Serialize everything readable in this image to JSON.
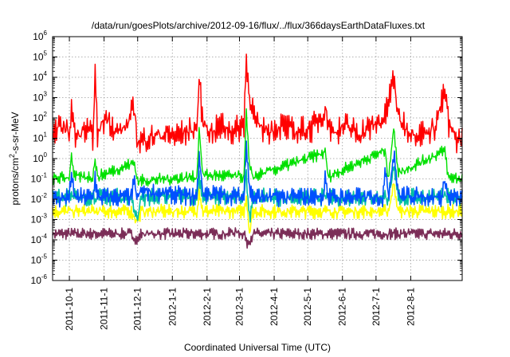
{
  "chart_data": {
    "type": "line",
    "title": "/data/run/goesPlots/archive/2012-09-16/flux/../flux/366daysEarthDataFluxes.txt",
    "xlabel": "Coordinated Universal Time (UTC)",
    "ylabel": "protons/cm2-s-sr-MeV",
    "ylabel_parts": {
      "base": "protons/cm",
      "sup": "2",
      "rest": "-s-sr-MeV"
    },
    "yscale": "log",
    "ylim_exponent": [
      -6,
      6
    ],
    "y_tick_labels": [
      {
        "base": "10",
        "exp": "-6"
      },
      {
        "base": "10",
        "exp": "-5"
      },
      {
        "base": "10",
        "exp": "-4"
      },
      {
        "base": "10",
        "exp": "-3"
      },
      {
        "base": "10",
        "exp": "-2"
      },
      {
        "base": "10",
        "exp": "-1"
      },
      {
        "base": "10",
        "exp": "0"
      },
      {
        "base": "10",
        "exp": "1"
      },
      {
        "base": "10",
        "exp": "2"
      },
      {
        "base": "10",
        "exp": "3"
      },
      {
        "base": "10",
        "exp": "4"
      },
      {
        "base": "10",
        "exp": "5"
      },
      {
        "base": "10",
        "exp": "6"
      }
    ],
    "xlim": [
      "2011-09-16",
      "2012-09-16"
    ],
    "x_ticks": [
      {
        "date": "2011-10-01",
        "label": "2011-10-1"
      },
      {
        "date": "2011-11-01",
        "label": "2011-11-1"
      },
      {
        "date": "2011-12-01",
        "label": "2011-12-1"
      },
      {
        "date": "2012-01-01",
        "label": "2012-1-1"
      },
      {
        "date": "2012-02-01",
        "label": "2012-2-1"
      },
      {
        "date": "2012-03-01",
        "label": "2012-3-1"
      },
      {
        "date": "2012-04-01",
        "label": "2012-4-1"
      },
      {
        "date": "2012-05-01",
        "label": "2012-5-1"
      },
      {
        "date": "2012-06-01",
        "label": "2012-6-1"
      },
      {
        "date": "2012-07-01",
        "label": "2012-7-1"
      },
      {
        "date": "2012-08-01",
        "label": "2012-8-1"
      }
    ],
    "grid": true,
    "series": [
      {
        "color": "#7b2d57",
        "points": [
          [
            "2011-09-16",
            -3.7
          ],
          [
            "2011-11-25",
            -3.7
          ],
          [
            "2011-12-01",
            -4.05
          ],
          [
            "2011-12-04",
            -3.7
          ],
          [
            "2012-02-20",
            -3.7
          ],
          [
            "2012-02-23",
            -3.6
          ],
          [
            "2012-03-06",
            -3.7
          ],
          [
            "2012-03-07",
            -4.2
          ],
          [
            "2012-03-10",
            -4.0
          ],
          [
            "2012-03-14",
            -3.7
          ],
          [
            "2012-09-16",
            -3.7
          ]
        ]
      },
      {
        "color": "#ffff00",
        "points": [
          [
            "2011-09-16",
            -2.6
          ],
          [
            "2011-11-25",
            -2.6
          ],
          [
            "2011-12-01",
            -3.1
          ],
          [
            "2011-12-04",
            -2.6
          ],
          [
            "2012-01-23",
            -2.6
          ],
          [
            "2012-01-25",
            -1.5
          ],
          [
            "2012-01-28",
            -2.6
          ],
          [
            "2012-03-05",
            -2.6
          ],
          [
            "2012-03-07",
            -1.8
          ],
          [
            "2012-03-10",
            -3.6
          ],
          [
            "2012-03-13",
            -2.6
          ],
          [
            "2012-07-12",
            -2.6
          ],
          [
            "2012-07-17",
            -1.2
          ],
          [
            "2012-07-21",
            -2.6
          ],
          [
            "2012-09-16",
            -2.6
          ]
        ]
      },
      {
        "color": "#00c0a0",
        "points": [
          [
            "2011-09-16",
            -1.9
          ],
          [
            "2011-11-25",
            -1.9
          ],
          [
            "2011-12-01",
            -3.0
          ],
          [
            "2011-12-04",
            -1.9
          ],
          [
            "2012-01-23",
            -1.9
          ],
          [
            "2012-01-25",
            -0.8
          ],
          [
            "2012-01-28",
            -1.9
          ],
          [
            "2012-03-05",
            -1.9
          ],
          [
            "2012-03-07",
            -0.6
          ],
          [
            "2012-03-10",
            -2.9
          ],
          [
            "2012-03-13",
            -1.9
          ],
          [
            "2012-07-12",
            -1.9
          ],
          [
            "2012-07-17",
            -0.6
          ],
          [
            "2012-07-21",
            -1.9
          ],
          [
            "2012-09-16",
            -1.9
          ]
        ]
      },
      {
        "color": "#0050ff",
        "points": [
          [
            "2011-09-16",
            -2.0
          ],
          [
            "2011-10-01",
            -1.9
          ],
          [
            "2011-10-03",
            -0.6
          ],
          [
            "2011-10-05",
            -1.9
          ],
          [
            "2011-10-22",
            -1.9
          ],
          [
            "2011-10-24",
            -0.9
          ],
          [
            "2011-10-26",
            -1.9
          ],
          [
            "2011-11-25",
            -1.9
          ],
          [
            "2011-11-28",
            -1.2
          ],
          [
            "2011-12-01",
            -2.0
          ],
          [
            "2011-12-04",
            -1.6
          ],
          [
            "2012-01-23",
            -1.9
          ],
          [
            "2012-01-25",
            0.3
          ],
          [
            "2012-01-28",
            -1.7
          ],
          [
            "2012-03-05",
            -1.9
          ],
          [
            "2012-03-07",
            1.0
          ],
          [
            "2012-03-10",
            -1.5
          ],
          [
            "2012-03-13",
            -1.9
          ],
          [
            "2012-05-15",
            -1.9
          ],
          [
            "2012-05-17",
            -0.6
          ],
          [
            "2012-05-19",
            -1.9
          ],
          [
            "2012-07-07",
            -1.9
          ],
          [
            "2012-07-09",
            -0.4
          ],
          [
            "2012-07-12",
            -1.9
          ],
          [
            "2012-07-17",
            0.4
          ],
          [
            "2012-07-21",
            -1.8
          ],
          [
            "2012-08-29",
            -1.9
          ],
          [
            "2012-09-01",
            -0.9
          ],
          [
            "2012-09-03",
            -1.9
          ],
          [
            "2012-09-16",
            -2.0
          ]
        ]
      },
      {
        "color": "#00e000",
        "points": [
          [
            "2011-09-16",
            -1.0
          ],
          [
            "2011-10-01",
            -0.9
          ],
          [
            "2011-10-03",
            0.3
          ],
          [
            "2011-10-05",
            -0.9
          ],
          [
            "2011-10-22",
            -0.9
          ],
          [
            "2011-10-24",
            0.0
          ],
          [
            "2011-10-26",
            -0.9
          ],
          [
            "2011-11-28",
            -0.2
          ],
          [
            "2011-12-01",
            -1.1
          ],
          [
            "2012-01-23",
            -0.9
          ],
          [
            "2012-01-25",
            1.6
          ],
          [
            "2012-01-28",
            -0.8
          ],
          [
            "2012-03-05",
            -0.9
          ],
          [
            "2012-03-07",
            2.3
          ],
          [
            "2012-03-10",
            -0.5
          ],
          [
            "2012-03-13",
            -0.9
          ],
          [
            "2012-05-17",
            0.3
          ],
          [
            "2012-05-19",
            -0.9
          ],
          [
            "2012-07-09",
            0.4
          ],
          [
            "2012-07-12",
            -0.9
          ],
          [
            "2012-07-17",
            1.5
          ],
          [
            "2012-07-21",
            -0.7
          ],
          [
            "2012-09-01",
            0.4
          ],
          [
            "2012-09-03",
            -0.9
          ],
          [
            "2012-09-16",
            -1.0
          ]
        ]
      },
      {
        "color": "#ff0000",
        "points": [
          [
            "2011-09-16",
            1.0
          ],
          [
            "2011-09-24",
            1.7
          ],
          [
            "2011-10-01",
            1.2
          ],
          [
            "2011-10-03",
            2.6
          ],
          [
            "2011-10-06",
            1.0
          ],
          [
            "2011-10-15",
            1.4
          ],
          [
            "2011-10-22",
            1.1
          ],
          [
            "2011-10-24",
            4.1
          ],
          [
            "2011-10-26",
            1.2
          ],
          [
            "2011-11-03",
            2.1
          ],
          [
            "2011-11-12",
            1.3
          ],
          [
            "2011-11-20",
            1.5
          ],
          [
            "2011-11-28",
            2.5
          ],
          [
            "2011-12-01",
            0.8
          ],
          [
            "2011-12-10",
            1.0
          ],
          [
            "2011-12-22",
            1.2
          ],
          [
            "2012-01-05",
            1.1
          ],
          [
            "2012-01-17",
            1.4
          ],
          [
            "2012-01-23",
            1.5
          ],
          [
            "2012-01-25",
            4.0
          ],
          [
            "2012-01-28",
            1.8
          ],
          [
            "2012-02-05",
            1.3
          ],
          [
            "2012-02-15",
            1.6
          ],
          [
            "2012-02-25",
            1.3
          ],
          [
            "2012-03-05",
            1.7
          ],
          [
            "2012-03-07",
            4.9
          ],
          [
            "2012-03-09",
            3.5
          ],
          [
            "2012-03-12",
            2.6
          ],
          [
            "2012-03-16",
            1.6
          ],
          [
            "2012-03-28",
            1.4
          ],
          [
            "2012-04-08",
            1.6
          ],
          [
            "2012-04-20",
            1.3
          ],
          [
            "2012-05-05",
            1.5
          ],
          [
            "2012-05-17",
            2.4
          ],
          [
            "2012-05-22",
            1.3
          ],
          [
            "2012-06-05",
            1.6
          ],
          [
            "2012-06-15",
            1.2
          ],
          [
            "2012-06-25",
            1.5
          ],
          [
            "2012-07-09",
            2.0
          ],
          [
            "2012-07-17",
            4.0
          ],
          [
            "2012-07-21",
            2.0
          ],
          [
            "2012-07-30",
            1.4
          ],
          [
            "2012-08-10",
            1.2
          ],
          [
            "2012-08-22",
            1.5
          ],
          [
            "2012-09-01",
            3.3
          ],
          [
            "2012-09-04",
            1.6
          ],
          [
            "2012-09-10",
            1.0
          ],
          [
            "2012-09-16",
            0.9
          ]
        ]
      }
    ]
  }
}
